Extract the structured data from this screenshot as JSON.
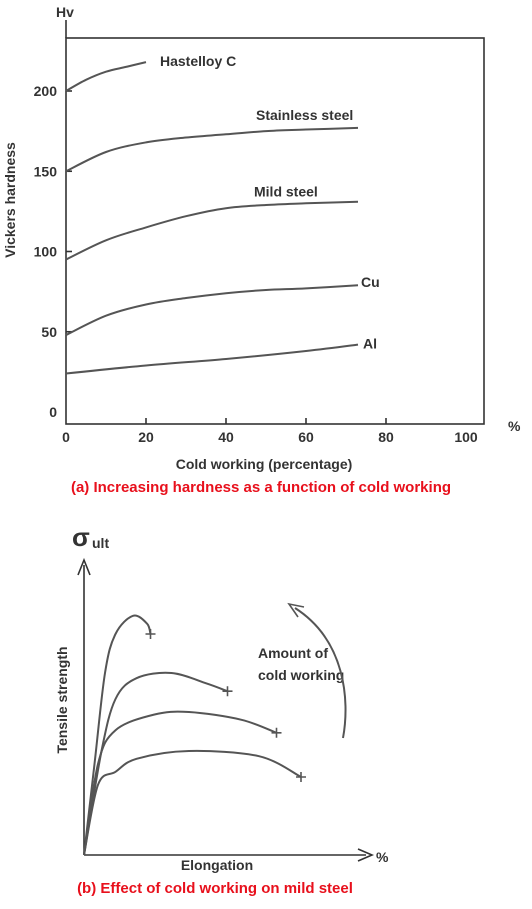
{
  "chart_data": [
    {
      "type": "line",
      "caption": "(a) Increasing hardness as a function of cold working",
      "xlabel": "Cold working (percentage)",
      "ylabel": "Vickers hardness",
      "y_unit": "Hv",
      "x_unit": "%",
      "xlim": [
        0,
        100
      ],
      "ylim": [
        0,
        230
      ],
      "x_ticks": [
        "0",
        "20",
        "40",
        "60",
        "80",
        "100"
      ],
      "y_ticks": [
        "0",
        "50",
        "100",
        "150",
        "200"
      ],
      "grid": false,
      "series": [
        {
          "name": "Hastelloy C",
          "x": [
            0,
            5,
            10,
            15,
            20
          ],
          "y": [
            200,
            207,
            212,
            215,
            218
          ]
        },
        {
          "name": "Stainless steel",
          "x": [
            0,
            10,
            20,
            30,
            40,
            50,
            60,
            73
          ],
          "y": [
            150,
            162,
            168,
            171,
            173,
            175,
            176,
            177
          ]
        },
        {
          "name": "Mild steel",
          "x": [
            0,
            10,
            20,
            30,
            40,
            50,
            60,
            73
          ],
          "y": [
            95,
            107,
            115,
            122,
            127,
            129,
            130,
            131
          ]
        },
        {
          "name": "Cu",
          "x": [
            0,
            10,
            20,
            30,
            40,
            50,
            60,
            73
          ],
          "y": [
            48,
            60,
            67,
            71,
            74,
            76,
            77,
            79
          ]
        },
        {
          "name": "Al",
          "x": [
            0,
            20,
            40,
            60,
            73
          ],
          "y": [
            24,
            29,
            33,
            38,
            42
          ]
        }
      ]
    },
    {
      "type": "line",
      "caption": "(b) Effect of cold working on mild steel",
      "xlabel": "Elongation",
      "x_unit": "%",
      "ylabel": "Tensile strength",
      "y_symbol": "σ",
      "y_symbol_sub": "ult",
      "annotation": [
        "Amount of",
        "cold working"
      ],
      "annotation_arrow": "upward",
      "grid": false,
      "series": [
        {
          "x": [
            0,
            3,
            6,
            9,
            14,
            18,
            19
          ],
          "y": [
            0,
            35,
            70,
            85,
            92,
            89,
            85
          ]
        },
        {
          "x": [
            0,
            5,
            9,
            15,
            25,
            35,
            41
          ],
          "y": [
            0,
            40,
            60,
            68,
            70,
            66,
            63
          ]
        },
        {
          "x": [
            0,
            4,
            9,
            20,
            30,
            45,
            55
          ],
          "y": [
            0,
            35,
            48,
            54,
            55,
            52,
            47
          ]
        },
        {
          "x": [
            0,
            4,
            9,
            15,
            30,
            50,
            62
          ],
          "y": [
            0,
            27,
            32,
            37,
            40,
            38,
            30
          ]
        }
      ]
    }
  ]
}
